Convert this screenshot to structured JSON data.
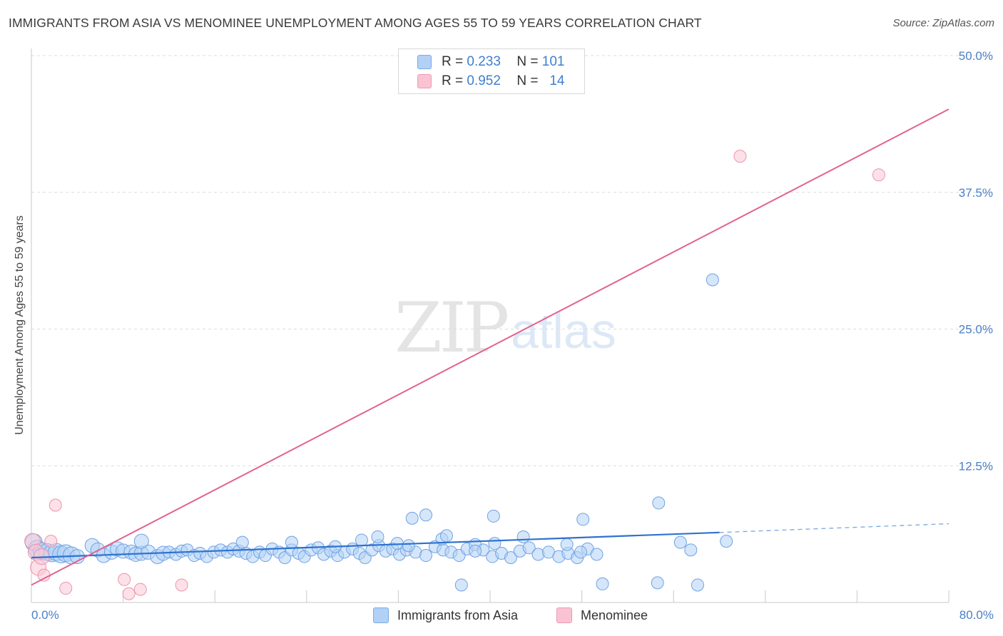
{
  "header": {
    "title": "IMMIGRANTS FROM ASIA VS MENOMINEE UNEMPLOYMENT AMONG AGES 55 TO 59 YEARS CORRELATION CHART",
    "source": "Source: ZipAtlas.com"
  },
  "watermark": {
    "zip": "ZIP",
    "atlas": "atlas"
  },
  "legend": {
    "r_label": "R =",
    "n_label": "N =",
    "rows": [
      {
        "series": "Immigrants from Asia",
        "r": "0.233",
        "n": "101",
        "color": "#5b9bea"
      },
      {
        "series": "Menominee",
        "r": "0.952",
        "n": "14",
        "color": "#ef8fad"
      }
    ]
  },
  "chart_data": {
    "type": "scatter",
    "title": "IMMIGRANTS FROM ASIA VS MENOMINEE UNEMPLOYMENT AMONG AGES 55 TO 59 YEARS CORRELATION CHART",
    "xlabel": "",
    "ylabel": "Unemployment Among Ages 55 to 59 years",
    "xlim": [
      0,
      80
    ],
    "ylim": [
      0,
      50
    ],
    "x_tick_labels": [
      "0.0%",
      "80.0%"
    ],
    "y_ticks": [
      12.5,
      25.0,
      37.5,
      50.0
    ],
    "y_tick_labels": [
      "12.5%",
      "25.0%",
      "37.5%",
      "50.0%"
    ],
    "series": [
      {
        "name": "Immigrants from Asia",
        "color": "#5b9bea",
        "trend": {
          "x0": 0,
          "y0": 4.1,
          "x1": 60,
          "y1": 6.4,
          "dash_to_x": 80,
          "dash_to_y": 7.2
        },
        "points": [
          [
            0.2,
            5.5
          ],
          [
            0.5,
            4.9
          ],
          [
            0.9,
            4.7
          ],
          [
            1.4,
            4.6
          ],
          [
            1.8,
            4.5
          ],
          [
            2.2,
            4.6
          ],
          [
            2.6,
            4.4
          ],
          [
            3.0,
            4.5
          ],
          [
            3.5,
            4.3
          ],
          [
            4.0,
            4.2
          ],
          [
            5.3,
            5.2
          ],
          [
            5.8,
            4.8
          ],
          [
            6.3,
            4.3
          ],
          [
            7.0,
            4.6
          ],
          [
            7.5,
            4.9
          ],
          [
            8.0,
            4.7
          ],
          [
            8.7,
            4.6
          ],
          [
            9.1,
            4.4
          ],
          [
            9.6,
            4.5
          ],
          [
            10.2,
            4.6
          ],
          [
            11.0,
            4.2
          ],
          [
            11.5,
            4.5
          ],
          [
            12.0,
            4.6
          ],
          [
            12.6,
            4.4
          ],
          [
            13.1,
            4.7
          ],
          [
            13.6,
            4.8
          ],
          [
            14.2,
            4.3
          ],
          [
            14.7,
            4.5
          ],
          [
            15.3,
            4.2
          ],
          [
            15.9,
            4.6
          ],
          [
            16.5,
            4.8
          ],
          [
            17.1,
            4.6
          ],
          [
            17.6,
            4.9
          ],
          [
            18.1,
            4.7
          ],
          [
            18.7,
            4.5
          ],
          [
            19.3,
            4.2
          ],
          [
            19.9,
            4.6
          ],
          [
            20.4,
            4.3
          ],
          [
            21.0,
            4.9
          ],
          [
            21.6,
            4.6
          ],
          [
            22.1,
            4.1
          ],
          [
            22.7,
            4.8
          ],
          [
            23.3,
            4.5
          ],
          [
            23.8,
            4.2
          ],
          [
            24.4,
            4.8
          ],
          [
            25.0,
            5.0
          ],
          [
            25.5,
            4.4
          ],
          [
            26.1,
            4.7
          ],
          [
            26.7,
            4.3
          ],
          [
            27.3,
            4.6
          ],
          [
            28.0,
            4.9
          ],
          [
            28.6,
            4.5
          ],
          [
            29.1,
            4.1
          ],
          [
            29.7,
            4.8
          ],
          [
            30.3,
            5.2
          ],
          [
            30.9,
            4.7
          ],
          [
            31.5,
            4.9
          ],
          [
            32.1,
            4.4
          ],
          [
            32.7,
            4.8
          ],
          [
            33.5,
            4.6
          ],
          [
            34.4,
            4.3
          ],
          [
            35.2,
            5.1
          ],
          [
            35.9,
            4.8
          ],
          [
            36.6,
            4.6
          ],
          [
            37.3,
            4.3
          ],
          [
            38.0,
            4.9
          ],
          [
            38.7,
            5.3
          ],
          [
            39.4,
            4.8
          ],
          [
            40.2,
            4.2
          ],
          [
            41.0,
            4.5
          ],
          [
            41.8,
            4.1
          ],
          [
            42.6,
            4.7
          ],
          [
            43.4,
            5.0
          ],
          [
            44.2,
            4.4
          ],
          [
            45.1,
            4.6
          ],
          [
            46.0,
            4.2
          ],
          [
            46.8,
            4.5
          ],
          [
            47.6,
            4.1
          ],
          [
            48.5,
            4.9
          ],
          [
            49.3,
            4.4
          ],
          [
            9.6,
            5.6
          ],
          [
            18.4,
            5.5
          ],
          [
            22.7,
            5.5
          ],
          [
            26.5,
            5.1
          ],
          [
            28.8,
            5.7
          ],
          [
            31.9,
            5.4
          ],
          [
            32.9,
            5.2
          ],
          [
            35.8,
            5.8
          ],
          [
            36.2,
            6.1
          ],
          [
            38.7,
            4.7
          ],
          [
            40.4,
            5.4
          ],
          [
            42.9,
            6.0
          ],
          [
            46.7,
            5.3
          ],
          [
            37.5,
            1.6
          ],
          [
            49.8,
            1.7
          ],
          [
            54.6,
            1.8
          ],
          [
            56.6,
            5.5
          ],
          [
            57.5,
            4.8
          ],
          [
            47.9,
            4.6
          ],
          [
            58.1,
            1.6
          ],
          [
            54.7,
            9.1
          ]
        ],
        "outliers": [
          [
            59.4,
            29.5
          ],
          [
            60.6,
            5.6
          ],
          [
            48.1,
            7.6
          ],
          [
            40.3,
            7.9
          ],
          [
            30.2,
            6.0
          ],
          [
            34.4,
            8.0
          ],
          [
            33.2,
            7.7
          ]
        ]
      },
      {
        "name": "Menominee",
        "color": "#ef8fad",
        "trend": {
          "x0": 0,
          "y0": 1.6,
          "x1": 80,
          "y1": 45.1
        },
        "points": [
          [
            0.1,
            5.6
          ],
          [
            0.4,
            4.6
          ],
          [
            0.6,
            3.2
          ],
          [
            1.1,
            2.5
          ],
          [
            1.7,
            5.6
          ],
          [
            2.1,
            8.9
          ],
          [
            3.0,
            1.3
          ],
          [
            8.1,
            2.1
          ],
          [
            8.5,
            0.8
          ],
          [
            9.5,
            1.2
          ],
          [
            13.1,
            1.6
          ],
          [
            61.8,
            40.8
          ],
          [
            73.9,
            39.1
          ],
          [
            0.9,
            4.2
          ]
        ]
      }
    ]
  },
  "bottom_legend": [
    {
      "label": "Immigrants from Asia"
    },
    {
      "label": "Menominee"
    }
  ]
}
